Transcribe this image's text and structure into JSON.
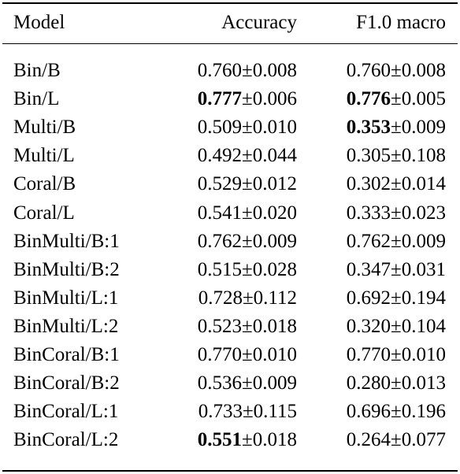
{
  "table": {
    "headers": {
      "model": "Model",
      "accuracy": "Accuracy",
      "f1": "F1.0 macro"
    },
    "pm": "±",
    "rows": [
      {
        "model": "Bin/B",
        "acc": {
          "val": "0.760",
          "err": "0.008",
          "bold": false
        },
        "f1": {
          "val": "0.760",
          "err": "0.008",
          "bold": false
        }
      },
      {
        "model": "Bin/L",
        "acc": {
          "val": "0.777",
          "err": "0.006",
          "bold": true
        },
        "f1": {
          "val": "0.776",
          "err": "0.005",
          "bold": true
        }
      },
      {
        "model": "Multi/B",
        "acc": {
          "val": "0.509",
          "err": "0.010",
          "bold": false
        },
        "f1": {
          "val": "0.353",
          "err": "0.009",
          "bold": true
        }
      },
      {
        "model": "Multi/L",
        "acc": {
          "val": "0.492",
          "err": "0.044",
          "bold": false
        },
        "f1": {
          "val": "0.305",
          "err": "0.108",
          "bold": false
        }
      },
      {
        "model": "Coral/B",
        "acc": {
          "val": "0.529",
          "err": "0.012",
          "bold": false
        },
        "f1": {
          "val": "0.302",
          "err": "0.014",
          "bold": false
        }
      },
      {
        "model": "Coral/L",
        "acc": {
          "val": "0.541",
          "err": "0.020",
          "bold": false
        },
        "f1": {
          "val": "0.333",
          "err": "0.023",
          "bold": false
        }
      },
      {
        "model": "BinMulti/B:1",
        "acc": {
          "val": "0.762",
          "err": "0.009",
          "bold": false
        },
        "f1": {
          "val": "0.762",
          "err": "0.009",
          "bold": false
        }
      },
      {
        "model": "BinMulti/B:2",
        "acc": {
          "val": "0.515",
          "err": "0.028",
          "bold": false
        },
        "f1": {
          "val": "0.347",
          "err": "0.031",
          "bold": false
        }
      },
      {
        "model": "BinMulti/L:1",
        "acc": {
          "val": "0.728",
          "err": "0.112",
          "bold": false
        },
        "f1": {
          "val": "0.692",
          "err": "0.194",
          "bold": false
        }
      },
      {
        "model": "BinMulti/L:2",
        "acc": {
          "val": "0.523",
          "err": "0.018",
          "bold": false
        },
        "f1": {
          "val": "0.320",
          "err": "0.104",
          "bold": false
        }
      },
      {
        "model": "BinCoral/B:1",
        "acc": {
          "val": "0.770",
          "err": "0.010",
          "bold": false
        },
        "f1": {
          "val": "0.770",
          "err": "0.010",
          "bold": false
        }
      },
      {
        "model": "BinCoral/B:2",
        "acc": {
          "val": "0.536",
          "err": "0.009",
          "bold": false
        },
        "f1": {
          "val": "0.280",
          "err": "0.013",
          "bold": false
        }
      },
      {
        "model": "BinCoral/L:1",
        "acc": {
          "val": "0.733",
          "err": "0.115",
          "bold": false
        },
        "f1": {
          "val": "0.696",
          "err": "0.196",
          "bold": false
        }
      },
      {
        "model": "BinCoral/L:2",
        "acc": {
          "val": "0.551",
          "err": "0.018",
          "bold": true
        },
        "f1": {
          "val": "0.264",
          "err": "0.077",
          "bold": false
        }
      }
    ]
  }
}
